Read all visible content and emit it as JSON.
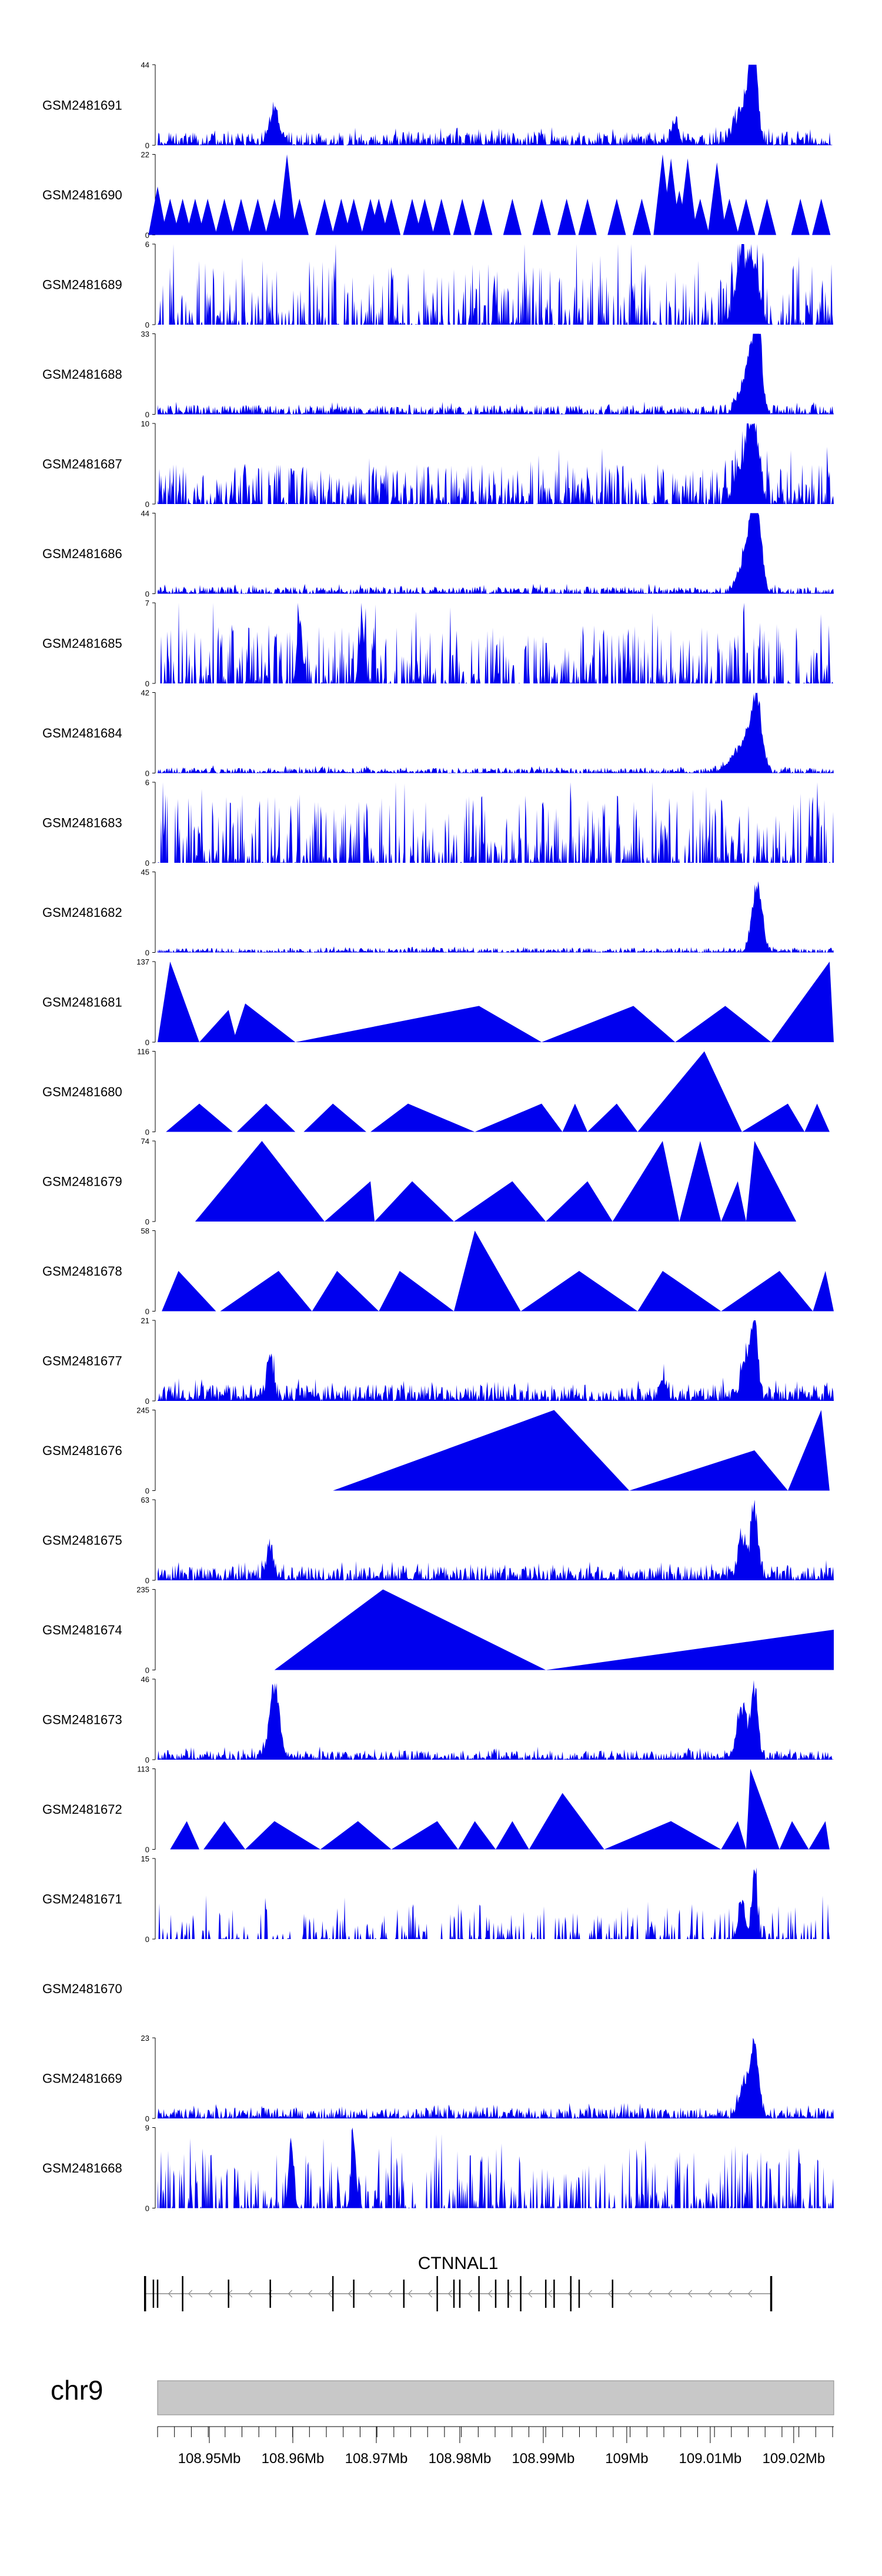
{
  "chart_data": {
    "type": "area",
    "title": "",
    "colors": {
      "signal": "#0000ee",
      "ideogram": "#c8c8c8",
      "gene": "#000000"
    },
    "x_domain_mb": [
      108.941,
      109.022
    ],
    "tracks": [
      {
        "name": "GSM2481691",
        "ymax": "44",
        "ymax_num": 44,
        "peaks": [
          [
            108.955,
            0.15,
            0.0006
          ],
          [
            108.955,
            0.38,
            0.0004
          ],
          [
            109.003,
            0.28,
            0.0004
          ],
          [
            109.012,
            0.6,
            0.0005
          ],
          [
            109.0125,
            1.0,
            0.0004
          ],
          [
            109.011,
            0.4,
            0.001
          ]
        ],
        "noise": [
          0.03,
          0.14
        ],
        "density": 1.0
      },
      {
        "name": "GSM2481690",
        "ymax": "22",
        "ymax_num": 22,
        "spikes": [
          [
            108.941,
            0.6
          ],
          [
            108.9425,
            0.45
          ],
          [
            108.944,
            0.45
          ],
          [
            108.9455,
            0.45
          ],
          [
            108.947,
            0.45
          ],
          [
            108.949,
            0.45
          ],
          [
            108.951,
            0.45
          ],
          [
            108.953,
            0.45
          ],
          [
            108.955,
            0.45
          ],
          [
            108.9565,
            1.0
          ],
          [
            108.958,
            0.45
          ],
          [
            108.961,
            0.45
          ],
          [
            108.963,
            0.45
          ],
          [
            108.9645,
            0.45
          ],
          [
            108.9665,
            0.45
          ],
          [
            108.9675,
            0.45
          ],
          [
            108.969,
            0.45
          ],
          [
            108.9715,
            0.45
          ],
          [
            108.973,
            0.45
          ],
          [
            108.975,
            0.45
          ],
          [
            108.9775,
            0.45
          ],
          [
            108.98,
            0.45
          ],
          [
            108.9835,
            0.45
          ],
          [
            108.987,
            0.45
          ],
          [
            108.99,
            0.45
          ],
          [
            108.9925,
            0.45
          ],
          [
            108.996,
            0.45
          ],
          [
            108.999,
            0.45
          ],
          [
            109.0015,
            1.0
          ],
          [
            109.0025,
            0.95
          ],
          [
            109.0035,
            0.55
          ],
          [
            109.0045,
            0.95
          ],
          [
            109.006,
            0.45
          ],
          [
            109.008,
            0.9
          ],
          [
            109.0095,
            0.45
          ],
          [
            109.0115,
            0.45
          ],
          [
            109.014,
            0.45
          ],
          [
            109.018,
            0.45
          ],
          [
            109.0205,
            0.45
          ]
        ],
        "width": 0.0011
      },
      {
        "name": "GSM2481689",
        "ymax": "6",
        "ymax_num": 6,
        "noise": [
          0.05,
          0.75
        ],
        "density": 0.55,
        "peaks": [
          [
            109.011,
            0.85,
            0.0008
          ],
          [
            109.0125,
            0.7,
            0.0006
          ]
        ]
      },
      {
        "name": "GSM2481688",
        "ymax": "33",
        "ymax_num": 33,
        "peaks": [
          [
            109.0113,
            0.35,
            0.0008
          ],
          [
            109.0123,
            0.75,
            0.0006
          ],
          [
            109.013,
            1.0,
            0.0004
          ]
        ],
        "noise": [
          0.02,
          0.1
        ],
        "density": 1.0
      },
      {
        "name": "GSM2481687",
        "ymax": "10",
        "ymax_num": 10,
        "noise": [
          0.05,
          0.45
        ],
        "density": 0.75,
        "peaks": [
          [
            109.011,
            0.55,
            0.0008
          ],
          [
            109.0125,
            0.95,
            0.0006
          ]
        ]
      },
      {
        "name": "GSM2481686",
        "ymax": "44",
        "ymax_num": 44,
        "peaks": [
          [
            109.0113,
            0.4,
            0.0008
          ],
          [
            109.0123,
            0.85,
            0.0006
          ],
          [
            109.013,
            0.7,
            0.0005
          ]
        ],
        "noise": [
          0.01,
          0.08
        ],
        "density": 1.0
      },
      {
        "name": "GSM2481685",
        "ymax": "7",
        "ymax_num": 7,
        "noise": [
          0.05,
          0.7
        ],
        "density": 0.6,
        "peaks": [
          [
            108.958,
            0.95,
            0.0003
          ],
          [
            108.9655,
            0.85,
            0.0003
          ]
        ]
      },
      {
        "name": "GSM2481684",
        "ymax": "42",
        "ymax_num": 42,
        "peaks": [
          [
            109.01,
            0.15,
            0.001
          ],
          [
            109.0115,
            0.4,
            0.0008
          ],
          [
            109.0128,
            0.95,
            0.0006
          ]
        ],
        "noise": [
          0.01,
          0.06
        ],
        "density": 1.0
      },
      {
        "name": "GSM2481683",
        "ymax": "6",
        "ymax_num": 6,
        "noise": [
          0.05,
          0.8
        ],
        "density": 0.55,
        "peaks": []
      },
      {
        "name": "GSM2481682",
        "ymax": "45",
        "ymax_num": 45,
        "peaks": [
          [
            109.0128,
            0.95,
            0.0006
          ]
        ],
        "noise": [
          0.01,
          0.05
        ],
        "density": 1.0
      },
      {
        "name": "GSM2481681",
        "ymax": "137",
        "ymax_num": 137,
        "tri": [
          [
            108.941,
            108.9425,
            108.946,
            1.0
          ],
          [
            108.946,
            108.9495,
            108.9505,
            0.4
          ],
          [
            108.95,
            108.9515,
            108.9575,
            0.48
          ],
          [
            108.9575,
            108.9795,
            108.987,
            0.45
          ],
          [
            108.987,
            108.998,
            109.003,
            0.45
          ],
          [
            109.003,
            109.009,
            109.0145,
            0.45
          ],
          [
            109.0145,
            109.0215,
            109.022,
            1.0
          ]
        ]
      },
      {
        "name": "GSM2481680",
        "ymax": "116",
        "ymax_num": 116,
        "tri": [
          [
            108.942,
            108.946,
            108.95,
            0.35
          ],
          [
            108.9505,
            108.954,
            108.9575,
            0.35
          ],
          [
            108.9585,
            108.962,
            108.966,
            0.35
          ],
          [
            108.9665,
            108.971,
            108.979,
            0.35
          ],
          [
            108.979,
            108.987,
            108.9895,
            0.35
          ],
          [
            108.9895,
            108.991,
            108.9925,
            0.35
          ],
          [
            108.9925,
            108.996,
            108.9985,
            0.35
          ],
          [
            108.9985,
            109.0065,
            109.011,
            1.0
          ],
          [
            109.011,
            109.0165,
            109.0185,
            0.35
          ],
          [
            109.0185,
            109.02,
            109.0215,
            0.35
          ]
        ]
      },
      {
        "name": "GSM2481679",
        "ymax": "74",
        "ymax_num": 74,
        "tri": [
          [
            108.9455,
            108.9535,
            108.961,
            1.0
          ],
          [
            108.961,
            108.9665,
            108.967,
            0.5
          ],
          [
            108.967,
            108.9715,
            108.9765,
            0.5
          ],
          [
            108.9765,
            108.9835,
            108.9875,
            0.5
          ],
          [
            108.9875,
            108.9925,
            108.9955,
            0.5
          ],
          [
            108.9955,
            109.0015,
            109.0035,
            1.0
          ],
          [
            109.0035,
            109.006,
            109.0085,
            1.0
          ],
          [
            109.0085,
            109.0105,
            109.0115,
            0.5
          ],
          [
            109.0115,
            109.0125,
            109.0175,
            1.0
          ]
        ]
      },
      {
        "name": "GSM2481678",
        "ymax": "58",
        "ymax_num": 58,
        "tri": [
          [
            108.9415,
            108.9435,
            108.948,
            0.5
          ],
          [
            108.9485,
            108.9555,
            108.9595,
            0.5
          ],
          [
            108.9595,
            108.9625,
            108.9675,
            0.5
          ],
          [
            108.9675,
            108.97,
            108.9765,
            0.5
          ],
          [
            108.9765,
            108.979,
            108.9845,
            1.0
          ],
          [
            108.9845,
            108.9915,
            108.9985,
            0.5
          ],
          [
            108.9985,
            109.0015,
            109.0085,
            0.5
          ],
          [
            109.0085,
            109.0155,
            109.0195,
            0.5
          ],
          [
            109.0195,
            109.021,
            109.022,
            0.5
          ]
        ]
      },
      {
        "name": "GSM2481677",
        "ymax": "21",
        "ymax_num": 21,
        "peaks": [
          [
            108.9545,
            0.6,
            0.0004
          ],
          [
            109.0015,
            0.3,
            0.0004
          ],
          [
            109.0115,
            0.5,
            0.0006
          ],
          [
            109.0125,
            1.0,
            0.0004
          ]
        ],
        "noise": [
          0.03,
          0.18
        ],
        "density": 1.0
      },
      {
        "name": "GSM2481676",
        "ymax": "245",
        "ymax_num": 245,
        "tri": [
          [
            108.962,
            108.9885,
            108.9975,
            1.0
          ],
          [
            108.9975,
            109.0125,
            109.0165,
            0.5
          ],
          [
            109.0165,
            109.0205,
            109.0215,
            1.0
          ]
        ]
      },
      {
        "name": "GSM2481675",
        "ymax": "63",
        "ymax_num": 63,
        "peaks": [
          [
            108.9545,
            0.4,
            0.0004
          ],
          [
            109.011,
            0.55,
            0.0005
          ],
          [
            109.0125,
            1.0,
            0.0004
          ]
        ],
        "noise": [
          0.03,
          0.15
        ],
        "density": 1.0
      },
      {
        "name": "GSM2481674",
        "ymax": "235",
        "ymax_num": 235,
        "tri": [
          [
            108.955,
            108.968,
            108.9875,
            1.0
          ],
          [
            108.9875,
            109.022,
            109.022,
            0.5
          ]
        ]
      },
      {
        "name": "GSM2481673",
        "ymax": "46",
        "ymax_num": 46,
        "peaks": [
          [
            108.955,
            1.0,
            0.0006
          ],
          [
            109.011,
            0.7,
            0.0006
          ],
          [
            109.0125,
            0.95,
            0.0004
          ]
        ],
        "noise": [
          0.02,
          0.1
        ],
        "density": 1.0
      },
      {
        "name": "GSM2481672",
        "ymax": "113",
        "ymax_num": 113,
        "tri": [
          [
            108.9425,
            108.9445,
            108.946,
            0.35
          ],
          [
            108.9465,
            108.949,
            108.9515,
            0.35
          ],
          [
            108.9515,
            108.955,
            108.9605,
            0.35
          ],
          [
            108.9605,
            108.965,
            108.969,
            0.35
          ],
          [
            108.969,
            108.9745,
            108.977,
            0.35
          ],
          [
            108.977,
            108.979,
            108.9815,
            0.35
          ],
          [
            108.9815,
            108.9835,
            108.9855,
            0.35
          ],
          [
            108.9855,
            108.9895,
            108.9945,
            0.7
          ],
          [
            108.9945,
            109.0025,
            109.0085,
            0.35
          ],
          [
            109.0085,
            109.0105,
            109.0115,
            0.35
          ],
          [
            109.0115,
            109.012,
            109.0155,
            1.0
          ],
          [
            109.0155,
            109.017,
            109.019,
            0.35
          ],
          [
            109.019,
            109.021,
            109.0215,
            0.35
          ]
        ]
      },
      {
        "name": "GSM2481671",
        "ymax": "15",
        "ymax_num": 15,
        "noise": [
          0.1,
          0.35
        ],
        "density": 0.35,
        "peaks": [
          [
            109.0125,
            1.0,
            0.0003
          ],
          [
            109.011,
            0.55,
            0.0004
          ]
        ]
      },
      {
        "name": "GSM2481670",
        "ymax": "",
        "ymax_num": 0,
        "empty": true
      },
      {
        "name": "GSM2481669",
        "ymax": "23",
        "ymax_num": 23,
        "peaks": [
          [
            109.0113,
            0.45,
            0.0006
          ],
          [
            109.0125,
            0.95,
            0.0005
          ]
        ],
        "noise": [
          0.02,
          0.12
        ],
        "density": 1.0
      },
      {
        "name": "GSM2481668",
        "ymax": "9",
        "ymax_num": 9,
        "noise": [
          0.15,
          0.6
        ],
        "density": 0.5,
        "peaks": [
          [
            108.957,
            0.95,
            0.0003
          ],
          [
            108.9645,
            0.85,
            0.0003
          ]
        ]
      }
    ],
    "gene": {
      "name": "CTNNAL1",
      "start_mb": 108.9395,
      "end_mb": 109.0145,
      "strand": "-",
      "exons_mb": [
        108.9395,
        108.9405,
        108.941,
        108.944,
        108.9495,
        108.9545,
        108.962,
        108.9645,
        108.9705,
        108.9745,
        108.9765,
        108.9772,
        108.9795,
        108.9815,
        108.983,
        108.9845,
        108.9875,
        108.9885,
        108.9905,
        108.9915,
        108.9955,
        109.0145
      ]
    },
    "chromosome": "chr9",
    "x_ticks": [
      {
        "label": "108.95Mb",
        "mb": 108.9472
      },
      {
        "label": "108.96Mb",
        "mb": 108.9572
      },
      {
        "label": "108.97Mb",
        "mb": 108.9672
      },
      {
        "label": "108.98Mb",
        "mb": 108.9772
      },
      {
        "label": "108.99Mb",
        "mb": 108.9872
      },
      {
        "label": "109Mb",
        "mb": 108.9972
      },
      {
        "label": "109.01Mb",
        "mb": 109.0072
      },
      {
        "label": "109.02Mb",
        "mb": 109.0172
      }
    ]
  }
}
